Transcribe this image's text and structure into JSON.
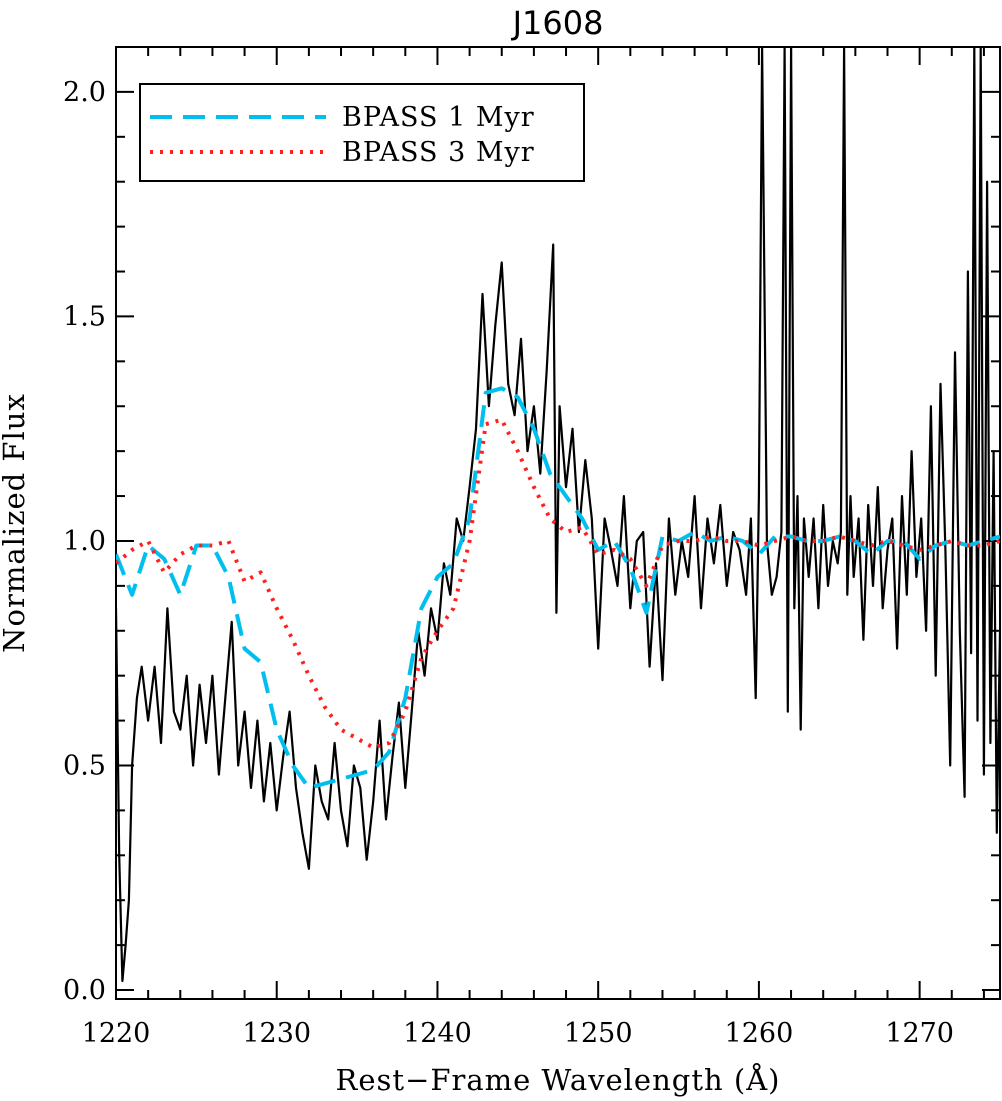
{
  "chart_data": {
    "type": "line",
    "title": "J1608",
    "xlabel": "Rest−Frame Wavelength (Å)",
    "ylabel": "Normalized Flux",
    "xlim": [
      1220,
      1275
    ],
    "ylim": [
      -0.02,
      2.1
    ],
    "x_ticks": [
      1220,
      1230,
      1240,
      1250,
      1260,
      1270
    ],
    "x_tick_labels": [
      "1220",
      "1230",
      "1240",
      "1250",
      "1260",
      "1270"
    ],
    "y_ticks": [
      0.0,
      0.5,
      1.0,
      1.5,
      2.0
    ],
    "y_tick_labels": [
      "0.0",
      "0.5",
      "1.0",
      "1.5",
      "2.0"
    ],
    "grid": false,
    "legend_position": "top-left",
    "series": [
      {
        "name": "",
        "color": "#000000",
        "style": "solid",
        "x": [
          1220.0,
          1220.2,
          1220.4,
          1220.6,
          1220.8,
          1221.0,
          1221.3,
          1221.6,
          1222.0,
          1222.4,
          1222.8,
          1223.2,
          1223.6,
          1224.0,
          1224.4,
          1224.8,
          1225.2,
          1225.6,
          1226.0,
          1226.4,
          1226.8,
          1227.2,
          1227.6,
          1228.0,
          1228.4,
          1228.8,
          1229.2,
          1229.6,
          1230.0,
          1230.4,
          1230.8,
          1231.2,
          1231.6,
          1232.0,
          1232.4,
          1232.8,
          1233.2,
          1233.6,
          1234.0,
          1234.4,
          1234.8,
          1235.2,
          1235.6,
          1236.0,
          1236.4,
          1236.8,
          1237.2,
          1237.6,
          1238.0,
          1238.4,
          1238.8,
          1239.2,
          1239.6,
          1240.0,
          1240.4,
          1240.8,
          1241.2,
          1241.6,
          1242.0,
          1242.4,
          1242.8,
          1243.2,
          1243.6,
          1244.0,
          1244.4,
          1244.8,
          1245.2,
          1245.6,
          1246.0,
          1246.4,
          1246.8,
          1247.2,
          1247.4,
          1247.6,
          1248.0,
          1248.4,
          1248.8,
          1249.2,
          1249.6,
          1250.0,
          1250.4,
          1250.8,
          1251.2,
          1251.6,
          1252.0,
          1252.4,
          1252.8,
          1253.2,
          1253.6,
          1254.0,
          1254.4,
          1254.8,
          1255.2,
          1255.6,
          1256.0,
          1256.4,
          1256.8,
          1257.2,
          1257.6,
          1258.0,
          1258.4,
          1258.8,
          1259.2,
          1259.5,
          1259.8,
          1260.0,
          1260.2,
          1260.5,
          1260.8,
          1261.1,
          1261.4,
          1261.6,
          1261.8,
          1262.0,
          1262.2,
          1262.4,
          1262.6,
          1262.8,
          1263.1,
          1263.4,
          1263.7,
          1264.0,
          1264.3,
          1264.6,
          1264.9,
          1265.1,
          1265.3,
          1265.5,
          1265.7,
          1265.9,
          1266.2,
          1266.5,
          1266.8,
          1267.1,
          1267.4,
          1267.7,
          1268.0,
          1268.3,
          1268.6,
          1268.9,
          1269.2,
          1269.5,
          1269.8,
          1270.1,
          1270.4,
          1270.7,
          1271.0,
          1271.3,
          1271.6,
          1271.9,
          1272.2,
          1272.5,
          1272.8,
          1273.0,
          1273.2,
          1273.4,
          1273.6,
          1273.8,
          1274.0,
          1274.2,
          1274.4,
          1274.6,
          1274.8,
          1275.0
        ],
        "y": [
          0.85,
          0.3,
          0.02,
          0.1,
          0.2,
          0.5,
          0.65,
          0.72,
          0.6,
          0.72,
          0.55,
          0.85,
          0.62,
          0.58,
          0.7,
          0.5,
          0.68,
          0.55,
          0.7,
          0.48,
          0.65,
          0.82,
          0.5,
          0.62,
          0.45,
          0.6,
          0.42,
          0.55,
          0.4,
          0.52,
          0.62,
          0.45,
          0.35,
          0.27,
          0.5,
          0.42,
          0.38,
          0.55,
          0.4,
          0.32,
          0.5,
          0.45,
          0.29,
          0.42,
          0.6,
          0.38,
          0.52,
          0.64,
          0.45,
          0.62,
          0.8,
          0.7,
          0.85,
          0.78,
          0.95,
          0.88,
          1.05,
          1.0,
          1.12,
          1.25,
          1.55,
          1.3,
          1.48,
          1.62,
          1.35,
          1.28,
          1.45,
          1.2,
          1.3,
          1.15,
          1.38,
          1.66,
          0.84,
          1.3,
          1.12,
          1.25,
          1.02,
          1.18,
          1.05,
          0.76,
          1.05,
          0.98,
          0.9,
          1.1,
          0.85,
          1.0,
          1.02,
          0.72,
          0.95,
          0.69,
          1.05,
          0.88,
          1.0,
          0.92,
          1.1,
          0.85,
          1.05,
          0.95,
          1.08,
          0.9,
          1.02,
          0.98,
          0.88,
          1.05,
          0.65,
          1.1,
          2.1,
          1.0,
          0.88,
          0.92,
          1.02,
          2.1,
          0.62,
          2.1,
          0.85,
          1.1,
          0.58,
          1.05,
          0.92,
          1.05,
          0.85,
          1.08,
          0.9,
          1.0,
          0.95,
          1.02,
          2.1,
          0.88,
          1.1,
          0.92,
          1.05,
          0.78,
          1.08,
          0.9,
          1.12,
          0.85,
          0.98,
          1.05,
          0.76,
          1.1,
          0.88,
          1.2,
          0.92,
          1.05,
          0.8,
          1.3,
          0.7,
          1.35,
          0.98,
          0.5,
          1.42,
          0.8,
          0.43,
          1.6,
          0.75,
          2.1,
          0.6,
          2.1,
          0.48,
          1.8,
          0.55,
          1.2,
          0.35,
          0.8
        ],
        "note": ""
      },
      {
        "name": "BPASS 1 Myr",
        "color": "#00BFEF",
        "style": "dashed",
        "x": [
          1220,
          1221,
          1222,
          1223,
          1224,
          1225,
          1226,
          1227,
          1228,
          1229,
          1230,
          1231,
          1232,
          1233,
          1234,
          1235,
          1236,
          1237,
          1238,
          1239,
          1240,
          1241,
          1242,
          1243,
          1244,
          1245,
          1246,
          1247,
          1248,
          1249,
          1250,
          1251,
          1252,
          1253,
          1254,
          1255,
          1256,
          1257,
          1258,
          1259,
          1260,
          1261,
          1262,
          1263,
          1264,
          1265,
          1266,
          1267,
          1268,
          1269,
          1270,
          1271,
          1272,
          1273,
          1274,
          1275
        ],
        "y": [
          0.97,
          0.88,
          0.99,
          0.96,
          0.88,
          0.99,
          0.99,
          0.92,
          0.76,
          0.73,
          0.58,
          0.5,
          0.45,
          0.46,
          0.47,
          0.48,
          0.49,
          0.53,
          0.65,
          0.85,
          0.92,
          0.95,
          1.05,
          1.33,
          1.34,
          1.32,
          1.25,
          1.15,
          1.1,
          1.05,
          0.98,
          1.0,
          0.94,
          0.84,
          1.01,
          1.0,
          1.02,
          1.0,
          1.01,
          1.0,
          0.97,
          1.01,
          1.01,
          1.0,
          1.0,
          1.01,
          1.0,
          0.97,
          1.0,
          1.0,
          0.96,
          0.99,
          1.0,
          0.99,
          1.0,
          1.01
        ]
      },
      {
        "name": "BPASS 3 Myr",
        "color": "#FF2020",
        "style": "dotted",
        "x": [
          1220,
          1221,
          1222,
          1223,
          1224,
          1225,
          1226,
          1227,
          1228,
          1229,
          1230,
          1231,
          1232,
          1233,
          1234,
          1235,
          1236,
          1237,
          1238,
          1239,
          1240,
          1241,
          1242,
          1243,
          1244,
          1245,
          1246,
          1247,
          1248,
          1249,
          1250,
          1251,
          1252,
          1253,
          1254,
          1255,
          1256,
          1257,
          1258,
          1259,
          1260,
          1261,
          1262,
          1263,
          1264,
          1265,
          1266,
          1267,
          1268,
          1269,
          1270,
          1271,
          1272,
          1273,
          1274,
          1275
        ],
        "y": [
          0.95,
          0.98,
          1.0,
          0.93,
          0.97,
          0.99,
          0.99,
          1.0,
          0.91,
          0.93,
          0.85,
          0.78,
          0.7,
          0.63,
          0.58,
          0.56,
          0.54,
          0.55,
          0.62,
          0.74,
          0.8,
          0.85,
          1.0,
          1.26,
          1.27,
          1.2,
          1.12,
          1.05,
          1.02,
          1.03,
          0.97,
          0.98,
          0.96,
          0.9,
          0.99,
          1.0,
          1.0,
          1.01,
          1.0,
          1.0,
          0.99,
          1.0,
          1.01,
          1.0,
          1.0,
          1.01,
          1.0,
          0.99,
          1.0,
          0.99,
          0.98,
          0.99,
          1.0,
          0.99,
          0.99,
          1.0
        ]
      }
    ]
  }
}
